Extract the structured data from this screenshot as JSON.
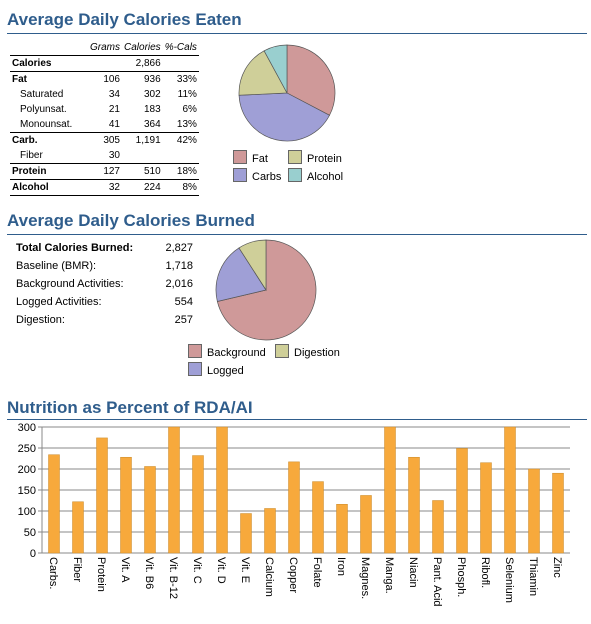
{
  "eaten": {
    "title": "Average Daily Calories Eaten",
    "headers": [
      "",
      "Grams",
      "Calories",
      "%-Cals"
    ],
    "rows": [
      {
        "label": "Calories",
        "grams": "",
        "cals": "2,866",
        "pct": "",
        "kind": "main"
      },
      {
        "label": "Fat",
        "grams": "106",
        "cals": "936",
        "pct": "33%",
        "kind": "main"
      },
      {
        "label": "Saturated",
        "grams": "34",
        "cals": "302",
        "pct": "11%",
        "kind": "sub"
      },
      {
        "label": "Polyunsat.",
        "grams": "21",
        "cals": "183",
        "pct": "6%",
        "kind": "sub"
      },
      {
        "label": "Monounsat.",
        "grams": "41",
        "cals": "364",
        "pct": "13%",
        "kind": "sub"
      },
      {
        "label": "Carb.",
        "grams": "305",
        "cals": "1,191",
        "pct": "42%",
        "kind": "main"
      },
      {
        "label": "Fiber",
        "grams": "30",
        "cals": "",
        "pct": "",
        "kind": "sub"
      },
      {
        "label": "Protein",
        "grams": "127",
        "cals": "510",
        "pct": "18%",
        "kind": "main"
      },
      {
        "label": "Alcohol",
        "grams": "32",
        "cals": "224",
        "pct": "8%",
        "kind": "main"
      }
    ],
    "legend": [
      "Fat",
      "Protein",
      "Carbs",
      "Alcohol"
    ]
  },
  "burned": {
    "title": "Average Daily Calories Burned",
    "rows": [
      {
        "label": "Total Calories Burned:",
        "value": "2,827",
        "bold": true
      },
      {
        "label": "Baseline (BMR):",
        "value": "1,718",
        "bold": false
      },
      {
        "label": "Background Activities:",
        "value": "2,016",
        "bold": false
      },
      {
        "label": "Logged Activities:",
        "value": "554",
        "bold": false
      },
      {
        "label": "Digestion:",
        "value": "257",
        "bold": false
      }
    ],
    "legend": [
      "Background",
      "Digestion",
      "Logged"
    ]
  },
  "rda": {
    "title": "Nutrition as Percent of RDA/AI"
  },
  "chart_data": [
    {
      "type": "pie",
      "categories": [
        "Fat",
        "Carbs",
        "Protein",
        "Alcohol"
      ],
      "values": [
        33,
        42,
        18,
        8
      ],
      "colors": [
        "#cf9999",
        "#9f9fd6",
        "#cfcf99",
        "#99cfcf"
      ]
    },
    {
      "type": "pie",
      "categories": [
        "Background",
        "Logged",
        "Digestion"
      ],
      "values": [
        2016,
        554,
        257
      ],
      "colors": [
        "#cf9999",
        "#9f9fd6",
        "#cfcf99"
      ]
    },
    {
      "type": "bar",
      "categories": [
        "Carbs.",
        "Fiber",
        "Protein",
        "Vit. A",
        "Vit. B6",
        "Vit. B-12",
        "Vit. C",
        "Vit. D",
        "Vit. E",
        "Calcium",
        "Copper",
        "Folate",
        "Iron",
        "Magnes.",
        "Manga.",
        "Niacin",
        "Pant. Acid",
        "Phosph.",
        "Ribofl.",
        "Selenium",
        "Thiamin",
        "Zinc"
      ],
      "values": [
        234,
        122,
        274,
        228,
        206,
        308,
        232,
        308,
        94,
        106,
        217,
        170,
        116,
        137,
        308,
        228,
        125,
        249,
        215,
        308,
        200,
        190
      ],
      "ylim": [
        0,
        300
      ],
      "yticks": [
        0,
        50,
        100,
        150,
        200,
        250,
        300
      ],
      "grid": true,
      "color": "#f7a93c"
    }
  ]
}
